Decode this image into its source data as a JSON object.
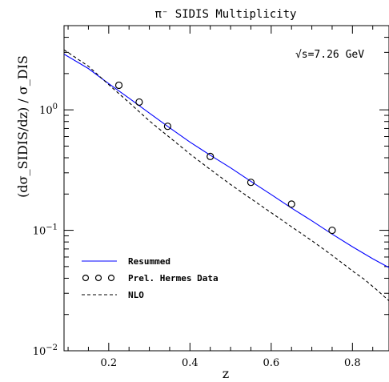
{
  "chart_data": {
    "type": "line",
    "title": "π⁻ SIDIS Multiplicity",
    "xlabel": "z",
    "ylabel": "(dσ_SIDIS/dz) / σ_DIS",
    "annotation": "√s=7.26 GeV",
    "xlim": [
      0.09,
      0.89
    ],
    "ylim": [
      0.01,
      5.0
    ],
    "yscale": "log",
    "grid": false,
    "legend_position": "bottom-left",
    "x_ticks": [
      {
        "value": 0.2,
        "label": "0.2"
      },
      {
        "value": 0.4,
        "label": "0.4"
      },
      {
        "value": 0.6,
        "label": "0.6"
      },
      {
        "value": 0.8,
        "label": "0.8"
      }
    ],
    "y_ticks": [
      {
        "value": 0.01,
        "base": "10",
        "exp": "−2"
      },
      {
        "value": 0.1,
        "base": "10",
        "exp": "−1"
      },
      {
        "value": 1.0,
        "base": "10",
        "exp": "0"
      }
    ],
    "series": [
      {
        "name": "Resummed",
        "style": "line",
        "color": "#0000ff",
        "x": [
          0.09,
          0.15,
          0.2,
          0.25,
          0.3,
          0.35,
          0.4,
          0.45,
          0.5,
          0.55,
          0.6,
          0.65,
          0.7,
          0.75,
          0.8,
          0.85,
          0.89
        ],
        "y": [
          2.9,
          2.2,
          1.65,
          1.25,
          0.94,
          0.71,
          0.54,
          0.42,
          0.33,
          0.255,
          0.198,
          0.153,
          0.12,
          0.093,
          0.073,
          0.058,
          0.049
        ]
      },
      {
        "name": "Prel. Hermes Data",
        "style": "markers",
        "color": "#000000",
        "x": [
          0.225,
          0.275,
          0.345,
          0.45,
          0.55,
          0.65,
          0.75
        ],
        "y": [
          1.6,
          1.16,
          0.73,
          0.41,
          0.25,
          0.165,
          0.1
        ]
      },
      {
        "name": "NLO",
        "style": "dashed",
        "color": "#000000",
        "x": [
          0.09,
          0.15,
          0.2,
          0.25,
          0.3,
          0.35,
          0.4,
          0.45,
          0.5,
          0.55,
          0.6,
          0.65,
          0.7,
          0.75,
          0.8,
          0.83,
          0.86,
          0.89
        ],
        "y": [
          3.15,
          2.3,
          1.62,
          1.15,
          0.81,
          0.59,
          0.43,
          0.32,
          0.24,
          0.183,
          0.14,
          0.107,
          0.082,
          0.062,
          0.046,
          0.039,
          0.032,
          0.026
        ]
      }
    ]
  }
}
